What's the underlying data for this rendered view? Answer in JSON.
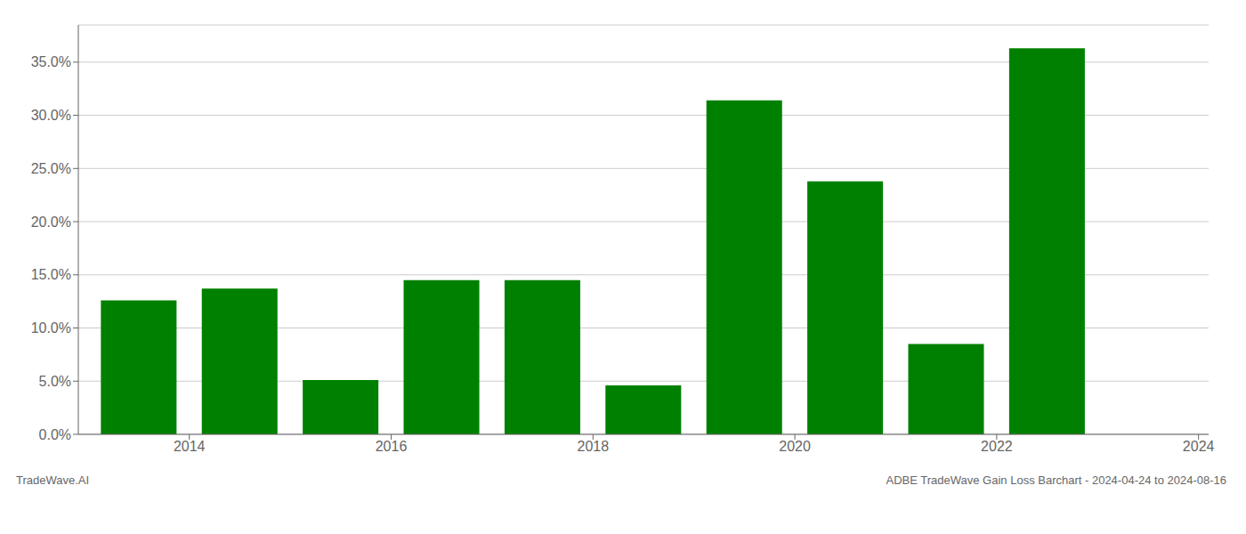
{
  "chart_data": {
    "type": "bar",
    "x": [
      2014,
      2015,
      2016,
      2017,
      2018,
      2019,
      2020,
      2021,
      2022,
      2023
    ],
    "values": [
      0.126,
      0.137,
      0.051,
      0.145,
      0.145,
      0.046,
      0.314,
      0.238,
      0.085,
      0.363
    ],
    "color": "#008000",
    "xlim": [
      2013.4,
      2024.6
    ],
    "xticks": [
      {
        "value": 2014.5,
        "label": "2014"
      },
      {
        "value": 2016.5,
        "label": "2016"
      },
      {
        "value": 2018.5,
        "label": "2018"
      },
      {
        "value": 2020.5,
        "label": "2020"
      },
      {
        "value": 2022.5,
        "label": "2022"
      },
      {
        "value": 2024.5,
        "label": "2024"
      }
    ],
    "ylim": [
      0.0,
      0.385
    ],
    "yticks": [
      {
        "value": 0.0,
        "label": "0.0%"
      },
      {
        "value": 0.05,
        "label": "5.0%"
      },
      {
        "value": 0.1,
        "label": "10.0%"
      },
      {
        "value": 0.15,
        "label": "15.0%"
      },
      {
        "value": 0.2,
        "label": "20.0%"
      },
      {
        "value": 0.25,
        "label": "25.0%"
      },
      {
        "value": 0.3,
        "label": "30.0%"
      },
      {
        "value": 0.35,
        "label": "35.0%"
      }
    ],
    "grid": true,
    "annotations": [
      "TradeWave.AI",
      "ADBE TradeWave Gain Loss Barchart - 2024-04-24 to 2024-08-16"
    ]
  }
}
